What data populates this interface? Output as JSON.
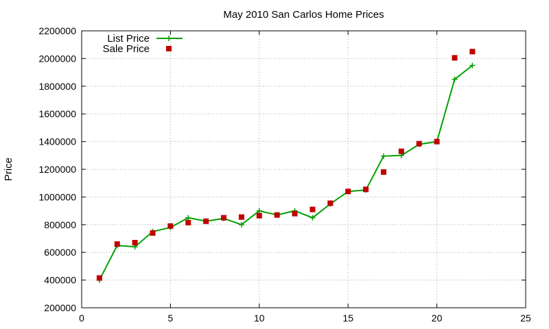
{
  "chart_data": {
    "type": "line",
    "title": "May 2010 San Carlos Home Prices",
    "xlabel": "",
    "ylabel": "Price",
    "xlim": [
      0,
      25
    ],
    "ylim": [
      200000,
      2200000
    ],
    "xticks": [
      "0",
      "5",
      "10",
      "15",
      "20",
      "25"
    ],
    "yticks": [
      "200000",
      "400000",
      "600000",
      "800000",
      "1000000",
      "1200000",
      "1400000",
      "1600000",
      "1800000",
      "2000000",
      "2200000"
    ],
    "grid": true,
    "legend_position": "top-left",
    "series": [
      {
        "name": "List Price",
        "style": "line-with-plus-markers",
        "color": "#00a000",
        "x": [
          1,
          2,
          3,
          4,
          5,
          6,
          7,
          8,
          9,
          10,
          11,
          12,
          13,
          14,
          15,
          16,
          17,
          18,
          19,
          20,
          21,
          22
        ],
        "values": [
          400000,
          650000,
          640000,
          750000,
          780000,
          850000,
          825000,
          845000,
          800000,
          900000,
          870000,
          900000,
          850000,
          950000,
          1040000,
          1050000,
          1295000,
          1300000,
          1380000,
          1400000,
          1850000,
          1950000
        ]
      },
      {
        "name": "Sale Price",
        "style": "square-markers",
        "color": "#c00000",
        "x": [
          1,
          2,
          3,
          4,
          5,
          6,
          7,
          8,
          9,
          10,
          11,
          12,
          13,
          14,
          15,
          16,
          17,
          18,
          19,
          20,
          21,
          22
        ],
        "values": [
          415000,
          660000,
          670000,
          740000,
          790000,
          815000,
          825000,
          850000,
          855000,
          865000,
          870000,
          880000,
          910000,
          955000,
          1040000,
          1055000,
          1180000,
          1330000,
          1385000,
          1400000,
          2005000,
          2050000
        ]
      }
    ]
  }
}
